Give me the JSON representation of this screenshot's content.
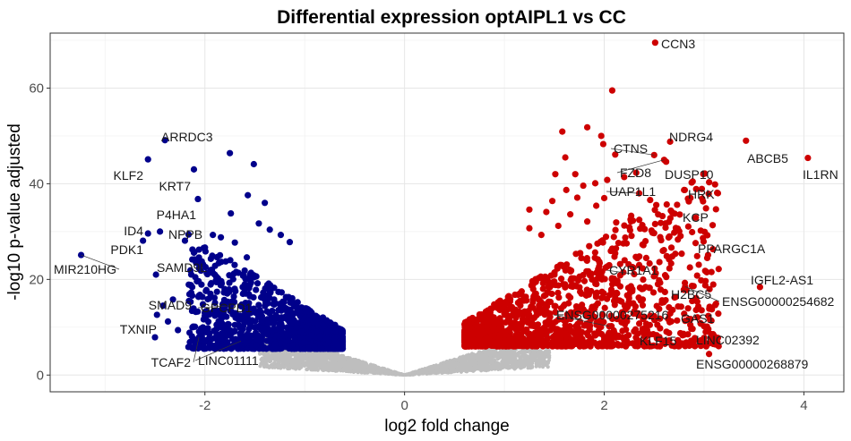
{
  "chart_data": {
    "type": "scatter",
    "title": "Differential expression optAIPL1 vs CC",
    "xlabel": "log2 fold change",
    "ylabel": "-log10 p-value adjusted",
    "xlim": [
      -3.55,
      4.4
    ],
    "ylim": [
      -3.5,
      71.5
    ],
    "x_ticks": [
      -2,
      0,
      2,
      4
    ],
    "y_ticks": [
      0,
      20,
      40,
      60
    ],
    "grid": true,
    "legend": "none",
    "colors": {
      "down": "#00008B",
      "up": "#CD0000",
      "ns": "#BEBEBE"
    },
    "labeled_points": [
      {
        "gene": "CCN3",
        "x": 2.51,
        "y": 69.5,
        "dir": "up"
      },
      {
        "gene": "NDRG4",
        "x": 2.66,
        "y": 48.8,
        "dir": "up"
      },
      {
        "gene": "CTNS",
        "x": 2.5,
        "y": 46.0,
        "dir": "up"
      },
      {
        "gene": "ABCB5",
        "x": 3.42,
        "y": 49.0,
        "dir": "up"
      },
      {
        "gene": "IL1RN",
        "x": 4.04,
        "y": 45.4,
        "dir": "up"
      },
      {
        "gene": "FZD8",
        "x": 2.6,
        "y": 45.0,
        "dir": "up"
      },
      {
        "gene": "DUSP10",
        "x": 2.62,
        "y": 44.6,
        "dir": "up"
      },
      {
        "gene": "UAP1L1",
        "x": 2.35,
        "y": 38.0,
        "dir": "up"
      },
      {
        "gene": "HRK",
        "x": 2.8,
        "y": 38.7,
        "dir": "up"
      },
      {
        "gene": "KCP",
        "x": 2.73,
        "y": 35.6,
        "dir": "up"
      },
      {
        "gene": "PPARGC1A",
        "x": 3.04,
        "y": 25.1,
        "dir": "up"
      },
      {
        "gene": "CYR1A1",
        "x": 2.3,
        "y": 21.1,
        "dir": "up"
      },
      {
        "gene": "IGFL2-AS1",
        "x": 3.56,
        "y": 18.4,
        "dir": "up"
      },
      {
        "gene": "H2BC5",
        "x": 2.56,
        "y": 19.3,
        "dir": "up"
      },
      {
        "gene": "ENSG00000254682",
        "x": 2.81,
        "y": 18.5,
        "dir": "up"
      },
      {
        "gene": "ENSG00000275216",
        "x": 2.05,
        "y": 10.2,
        "dir": "up"
      },
      {
        "gene": "GAS1",
        "x": 2.77,
        "y": 14.3,
        "dir": "up"
      },
      {
        "gene": "KLF15",
        "x": 2.43,
        "y": 9.4,
        "dir": "up"
      },
      {
        "gene": "LINC02392",
        "x": 3.0,
        "y": 10.2,
        "dir": "up"
      },
      {
        "gene": "ENSG00000268879",
        "x": 3.05,
        "y": 4.4,
        "dir": "up"
      },
      {
        "gene": "ARRDC3",
        "x": -2.4,
        "y": 49.1,
        "dir": "down"
      },
      {
        "gene": "KLF2",
        "x": -2.57,
        "y": 45.1,
        "dir": "down"
      },
      {
        "gene": "KRT7",
        "x": -2.11,
        "y": 43.0,
        "dir": "down"
      },
      {
        "gene": "P4HA1",
        "x": -2.07,
        "y": 36.8,
        "dir": "down"
      },
      {
        "gene": "ID4",
        "x": -2.57,
        "y": 29.6,
        "dir": "down"
      },
      {
        "gene": "NPPB",
        "x": -2.45,
        "y": 30.0,
        "dir": "down"
      },
      {
        "gene": "PDK1",
        "x": -2.62,
        "y": 28.1,
        "dir": "down"
      },
      {
        "gene": "MIR210HG",
        "x": -3.24,
        "y": 25.1,
        "dir": "down"
      },
      {
        "gene": "SAMD9L",
        "x": -2.49,
        "y": 21.0,
        "dir": "down"
      },
      {
        "gene": "SMAD9",
        "x": -2.16,
        "y": 15.5,
        "dir": "down"
      },
      {
        "gene": "GPCPD1",
        "x": -1.74,
        "y": 14.5,
        "dir": "down"
      },
      {
        "gene": "TXNIP",
        "x": -2.48,
        "y": 12.6,
        "dir": "down"
      },
      {
        "gene": "TCAF2",
        "x": -2.06,
        "y": 7.9,
        "dir": "down"
      },
      {
        "gene": "LINC01111",
        "x": -1.64,
        "y": 7.1,
        "dir": "down"
      }
    ],
    "scattered_points": [
      {
        "x": 2.08,
        "y": 59.5,
        "dir": "up"
      },
      {
        "x": 1.83,
        "y": 51.8,
        "dir": "up"
      },
      {
        "x": 1.58,
        "y": 50.9,
        "dir": "up"
      },
      {
        "x": 1.97,
        "y": 50.0,
        "dir": "up"
      },
      {
        "x": 1.99,
        "y": 48.3,
        "dir": "up"
      },
      {
        "x": 1.61,
        "y": 45.5,
        "dir": "up"
      },
      {
        "x": 2.11,
        "y": 46.1,
        "dir": "up"
      },
      {
        "x": 1.71,
        "y": 42.0,
        "dir": "up"
      },
      {
        "x": 1.51,
        "y": 42.0,
        "dir": "up"
      },
      {
        "x": 2.32,
        "y": 42.3,
        "dir": "up"
      },
      {
        "x": 2.2,
        "y": 41.4,
        "dir": "up"
      },
      {
        "x": 2.03,
        "y": 40.8,
        "dir": "up"
      },
      {
        "x": 1.91,
        "y": 40.1,
        "dir": "up"
      },
      {
        "x": 1.79,
        "y": 39.6,
        "dir": "up"
      },
      {
        "x": 1.62,
        "y": 38.7,
        "dir": "up"
      },
      {
        "x": 2.0,
        "y": 37.0,
        "dir": "up"
      },
      {
        "x": 1.73,
        "y": 37.1,
        "dir": "up"
      },
      {
        "x": 1.48,
        "y": 36.4,
        "dir": "up"
      },
      {
        "x": 2.46,
        "y": 36.6,
        "dir": "up"
      },
      {
        "x": 1.92,
        "y": 35.4,
        "dir": "up"
      },
      {
        "x": 1.25,
        "y": 34.6,
        "dir": "up"
      },
      {
        "x": 1.42,
        "y": 34.1,
        "dir": "up"
      },
      {
        "x": 2.27,
        "y": 33.3,
        "dir": "up"
      },
      {
        "x": 1.66,
        "y": 33.6,
        "dir": "up"
      },
      {
        "x": 2.12,
        "y": 31.9,
        "dir": "up"
      },
      {
        "x": 1.83,
        "y": 32.1,
        "dir": "up"
      },
      {
        "x": 1.54,
        "y": 31.2,
        "dir": "up"
      },
      {
        "x": 1.25,
        "y": 30.7,
        "dir": "up"
      },
      {
        "x": 2.36,
        "y": 30.6,
        "dir": "up"
      },
      {
        "x": 1.37,
        "y": 29.3,
        "dir": "up"
      },
      {
        "x": -1.75,
        "y": 46.4,
        "dir": "down"
      },
      {
        "x": -1.51,
        "y": 44.1,
        "dir": "down"
      },
      {
        "x": -1.92,
        "y": 29.3,
        "dir": "down"
      },
      {
        "x": -1.57,
        "y": 37.6,
        "dir": "down"
      },
      {
        "x": -1.74,
        "y": 33.8,
        "dir": "down"
      },
      {
        "x": -1.4,
        "y": 36.0,
        "dir": "down"
      },
      {
        "x": -1.84,
        "y": 28.8,
        "dir": "down"
      },
      {
        "x": -1.7,
        "y": 27.7,
        "dir": "down"
      },
      {
        "x": -1.46,
        "y": 31.7,
        "dir": "down"
      },
      {
        "x": -1.35,
        "y": 30.4,
        "dir": "down"
      },
      {
        "x": -1.24,
        "y": 29.3,
        "dir": "down"
      },
      {
        "x": -2.2,
        "y": 28.1,
        "dir": "down"
      },
      {
        "x": -1.15,
        "y": 27.8,
        "dir": "down"
      },
      {
        "x": -1.58,
        "y": 24.6,
        "dir": "down"
      },
      {
        "x": -1.93,
        "y": 22.0,
        "dir": "down"
      },
      {
        "x": -2.08,
        "y": 19.6,
        "dir": "down"
      },
      {
        "x": -2.14,
        "y": 18.8,
        "dir": "down"
      },
      {
        "x": -2.32,
        "y": 15.8,
        "dir": "down"
      },
      {
        "x": -2.02,
        "y": 14.8,
        "dir": "down"
      },
      {
        "x": -2.37,
        "y": 11.2,
        "dir": "down"
      },
      {
        "x": -2.27,
        "y": 9.4,
        "dir": "down"
      },
      {
        "x": -2.13,
        "y": 8.1,
        "dir": "down"
      },
      {
        "x": -1.97,
        "y": 9.8,
        "dir": "down"
      },
      {
        "x": -1.83,
        "y": 7.7,
        "dir": "down"
      },
      {
        "x": -1.9,
        "y": 12.4,
        "dir": "down"
      },
      {
        "x": -2.42,
        "y": 14.5,
        "dir": "down"
      },
      {
        "x": -2.5,
        "y": 7.9,
        "dir": "down"
      }
    ],
    "clusters": {
      "ns": {
        "n": 2600,
        "x_range": [
          -1.5,
          1.5
        ]
      },
      "up": {
        "n": 1400,
        "x_range": [
          0.6,
          3.2
        ]
      },
      "down": {
        "n": 1300,
        "x_range": [
          -2.3,
          -0.6
        ]
      }
    }
  }
}
